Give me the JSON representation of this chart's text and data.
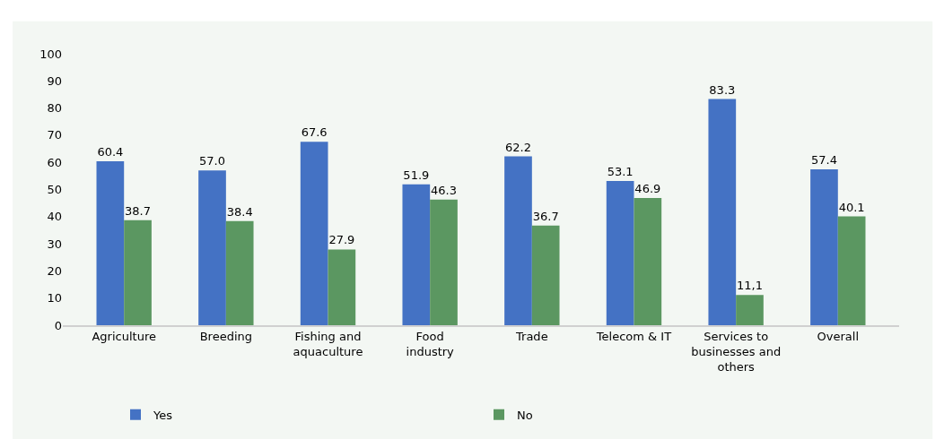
{
  "chart_data": {
    "type": "bar",
    "categories": [
      "Agriculture",
      "Breeding",
      "Fishing and\naquaculture",
      "Food\nindustry",
      "Trade",
      "Telecom & IT",
      "Services to\nbusinesses and\nothers",
      "Overall"
    ],
    "series": [
      {
        "name": "Yes",
        "color": "#4472c4",
        "values": [
          60.4,
          57.0,
          67.6,
          51.9,
          62.2,
          53.1,
          83.3,
          57.4
        ],
        "value_labels": [
          "60.4",
          "57.0",
          "67.6",
          "51.9",
          "62.2",
          "53.1",
          "83.3",
          "57.4"
        ]
      },
      {
        "name": "No",
        "color": "#5b9761",
        "values": [
          38.7,
          38.4,
          27.9,
          46.3,
          36.7,
          46.9,
          11.1,
          40.1
        ],
        "value_labels": [
          "38.7",
          "38.4",
          "27.9",
          "46.3",
          "36.7",
          "46.9",
          "11,1",
          "40.1"
        ]
      }
    ],
    "ylim": [
      0,
      100
    ],
    "yticks": [
      0,
      10,
      20,
      30,
      40,
      50,
      60,
      70,
      80,
      90,
      100
    ],
    "grid": false,
    "legend": "bottom"
  }
}
